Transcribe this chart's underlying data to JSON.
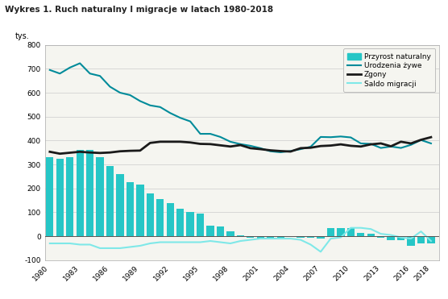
{
  "title": "Wykres 1. Ruch naturalny I migracje w latach 1980-2018",
  "ylabel": "tys.",
  "years": [
    1980,
    1981,
    1982,
    1983,
    1984,
    1985,
    1986,
    1987,
    1988,
    1989,
    1990,
    1991,
    1992,
    1993,
    1994,
    1995,
    1996,
    1997,
    1998,
    1999,
    2000,
    2001,
    2002,
    2003,
    2004,
    2005,
    2006,
    2007,
    2008,
    2009,
    2010,
    2011,
    2012,
    2013,
    2014,
    2015,
    2016,
    2017,
    2018
  ],
  "przyrost_naturalny": [
    330,
    325,
    330,
    360,
    360,
    330,
    295,
    260,
    225,
    215,
    180,
    155,
    140,
    115,
    100,
    95,
    45,
    40,
    20,
    5,
    -5,
    -10,
    -10,
    -5,
    0,
    -5,
    -5,
    -10,
    35,
    35,
    35,
    15,
    10,
    -5,
    -15,
    -15,
    -40,
    -30,
    -30
  ],
  "urodzenia_zywe": [
    695,
    680,
    705,
    723,
    680,
    670,
    625,
    600,
    590,
    565,
    547,
    540,
    515,
    495,
    480,
    428,
    428,
    415,
    395,
    385,
    378,
    368,
    355,
    351,
    356,
    364,
    374,
    415,
    414,
    417,
    413,
    388,
    386,
    369,
    375,
    369,
    382,
    402,
    388
  ],
  "zgony": [
    353,
    345,
    349,
    353,
    350,
    348,
    350,
    355,
    357,
    358,
    390,
    395,
    395,
    395,
    392,
    386,
    385,
    380,
    375,
    381,
    368,
    364,
    359,
    356,
    354,
    368,
    370,
    377,
    379,
    384,
    378,
    375,
    384,
    388,
    376,
    395,
    388,
    403,
    414
  ],
  "saldo_migracji": [
    -30,
    -30,
    -30,
    -35,
    -35,
    -50,
    -50,
    -50,
    -45,
    -40,
    -30,
    -25,
    -25,
    -25,
    -25,
    -25,
    -20,
    -25,
    -30,
    -20,
    -15,
    -10,
    -10,
    -10,
    -10,
    -15,
    -35,
    -65,
    -10,
    -5,
    35,
    35,
    30,
    10,
    5,
    -5,
    -10,
    20,
    -20
  ],
  "bar_color": "#26c6c6",
  "line_urodzenia_color": "#008b9a",
  "line_zgony_color": "#1a1a1a",
  "line_saldo_color": "#7fe8e8",
  "background_color": "#ffffff",
  "plot_bg_color": "#f5f5f0",
  "ylim": [
    -100,
    800
  ],
  "yticks": [
    -100,
    0,
    100,
    200,
    300,
    400,
    500,
    600,
    700,
    800
  ],
  "xticks": [
    1980,
    1983,
    1986,
    1989,
    1992,
    1995,
    1998,
    2001,
    2004,
    2007,
    2010,
    2013,
    2016,
    2018
  ],
  "legend_labels": [
    "Przyrost naturalny",
    "Urodzenia żywe",
    "Zgony",
    "Saldo migracji"
  ]
}
